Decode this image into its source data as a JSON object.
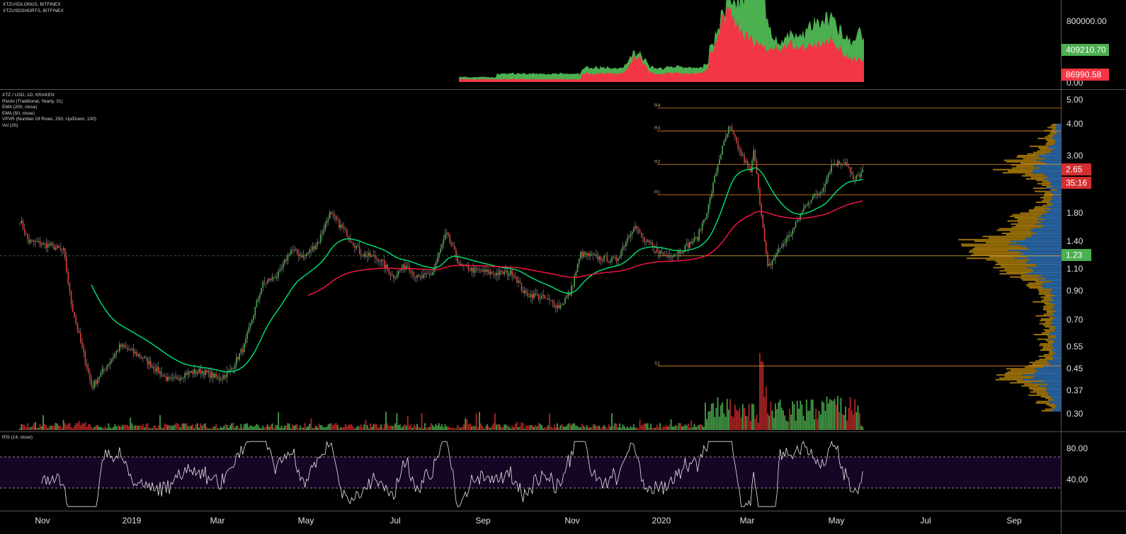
{
  "top_pane": {
    "legend": [
      "XTZUSDLONGS, BITFINEX",
      "XTZUSDSHORTS, BITFINEX"
    ],
    "axis_ticks": [
      "800000.00",
      "0.00"
    ],
    "badges": [
      {
        "text": "409210.70",
        "color": "#4caf50"
      },
      {
        "text": "86990.58",
        "color": "#f23645"
      }
    ],
    "chart_data": {
      "type": "area",
      "series": [
        {
          "name": "XTZUSDLONGS",
          "color": "#4caf50"
        },
        {
          "name": "XTZUSDSHORTS",
          "color": "#f23645"
        }
      ],
      "ylim": [
        0,
        900000
      ],
      "last_values": [
        409210.7,
        86990.58
      ]
    }
  },
  "main_pane": {
    "legend": [
      "XTZ / USD, 1D, KRAKEN",
      "Pivots (Traditional, Yearly, 31)",
      "EMA (200, close)",
      "EMA (50, close)",
      "VPVR (Number Of Rows, 250, Up/Down, 100)",
      "Vol (20)"
    ],
    "axis_ticks": [
      "5.00",
      "4.00",
      "3.00",
      "1.80",
      "1.40",
      "1.10",
      "0.90",
      "0.70",
      "0.55",
      "0.45",
      "0.37",
      "0.30"
    ],
    "price_badge": {
      "text": "2.65",
      "color": "#d32f2f"
    },
    "countdown_badge": {
      "text": "35:16",
      "color": "#d32f2f"
    },
    "pivot_price_badge": {
      "text": "1.23",
      "color": "#4caf50"
    },
    "pivot_labels": [
      "R4",
      "R3",
      "R2",
      "R1",
      "P",
      "S1"
    ],
    "chart_data": {
      "type": "candlestick",
      "scale": "log",
      "ylim": [
        0.3,
        5.0
      ],
      "last_price": 2.65,
      "pivot_line": 1.23,
      "pivots": {
        "R4": 4.6,
        "R3": 3.75,
        "R2": 2.78,
        "R1": 2.12,
        "P": 1.23,
        "S1": 0.46
      },
      "ema50_color": "#00e676",
      "ema200_color": "#ff1744"
    }
  },
  "rsi_pane": {
    "legend": "RSI (14, close)",
    "axis_ticks": [
      "80.00",
      "40.00"
    ],
    "chart_data": {
      "type": "line",
      "upper_band": 70,
      "lower_band": 30,
      "ylim": [
        0,
        100
      ]
    }
  },
  "time_axis": [
    "Nov",
    "2019",
    "Mar",
    "May",
    "Jul",
    "Sep",
    "Nov",
    "2020",
    "Mar",
    "May",
    "Jul",
    "Sep"
  ]
}
